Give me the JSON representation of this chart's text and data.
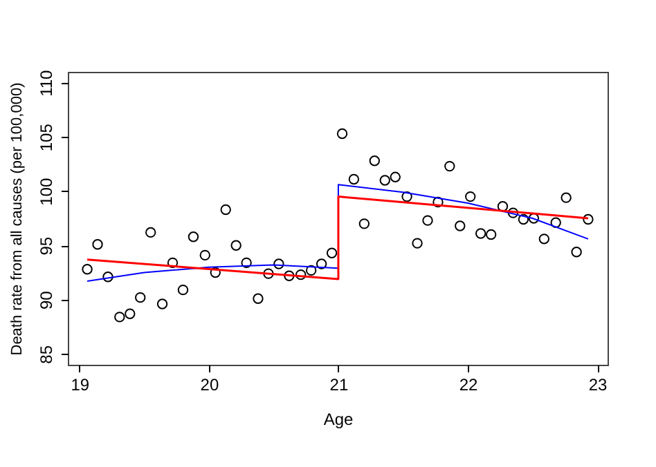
{
  "chart_data": {
    "type": "scatter",
    "xlabel": "Age",
    "ylabel": "Death rate from all causes (per 100,000)",
    "xlim": [
      18.91,
      23.08
    ],
    "ylim": [
      84.0,
      111.0
    ],
    "xticks": [
      19,
      20,
      21,
      22,
      23
    ],
    "yticks": [
      85,
      90,
      95,
      100,
      105,
      110
    ],
    "grid": false,
    "series": [
      {
        "type": "scatter",
        "marker": "circle",
        "color": "#000000",
        "x": [
          19.06,
          19.14,
          19.22,
          19.31,
          19.39,
          19.47,
          19.55,
          19.64,
          19.72,
          19.8,
          19.88,
          19.97,
          20.05,
          20.13,
          20.21,
          20.29,
          20.38,
          20.46,
          20.54,
          20.62,
          20.71,
          20.79,
          20.87,
          20.95,
          21.03,
          21.12,
          21.2,
          21.28,
          21.36,
          21.44,
          21.53,
          21.61,
          21.69,
          21.77,
          21.86,
          21.94,
          22.02,
          22.1,
          22.18,
          22.27,
          22.35,
          22.43,
          22.51,
          22.59,
          22.68,
          22.76,
          22.84,
          22.93
        ],
        "values": [
          92.8,
          95.1,
          92.1,
          88.4,
          88.7,
          90.2,
          96.2,
          89.6,
          93.4,
          90.9,
          95.8,
          94.1,
          92.5,
          98.3,
          95.0,
          93.4,
          90.1,
          92.4,
          93.3,
          92.2,
          92.3,
          92.7,
          93.3,
          94.3,
          105.3,
          101.1,
          97.0,
          102.8,
          101.0,
          101.3,
          99.5,
          95.2,
          97.3,
          99.0,
          102.3,
          96.8,
          99.5,
          96.1,
          96.0,
          98.6,
          98.0,
          97.4,
          97.5,
          95.6,
          97.1,
          99.4,
          94.4,
          97.4
        ]
      },
      {
        "type": "line",
        "color": "#0000ff",
        "x": [
          19.06,
          19.5,
          20.0,
          20.5,
          21.0,
          21.0,
          21.5,
          22.0,
          22.5,
          22.93
        ],
        "values": [
          91.7,
          92.5,
          93.0,
          93.2,
          92.9,
          100.6,
          99.9,
          98.9,
          97.5,
          95.6
        ]
      },
      {
        "type": "line",
        "color": "#ff0000",
        "x": [
          19.06,
          21.0,
          21.0,
          22.93
        ],
        "values": [
          93.7,
          91.9,
          99.5,
          97.5
        ]
      }
    ]
  }
}
